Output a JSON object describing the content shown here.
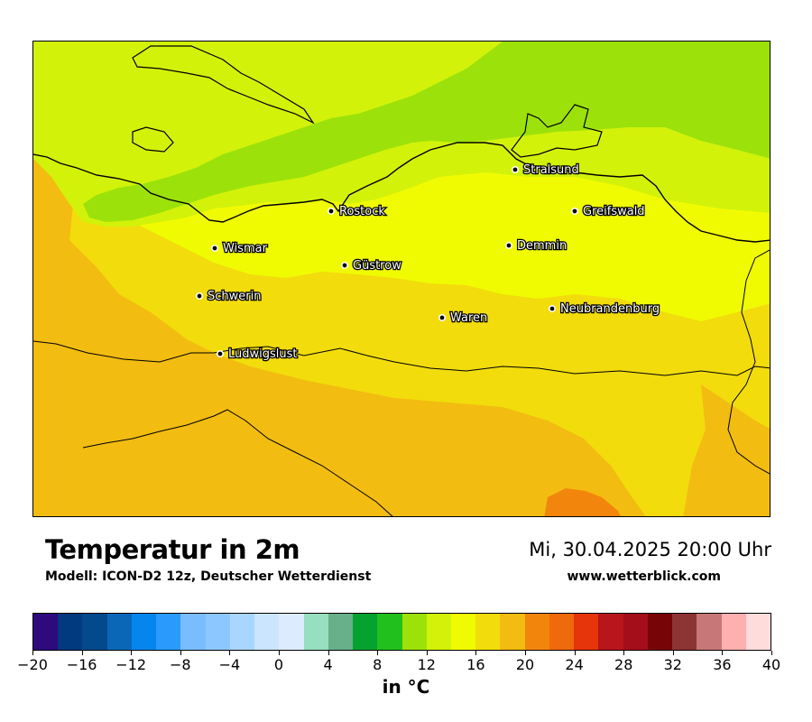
{
  "title": "Temperatur in 2m",
  "subtitle": "Modell: ICON-D2 12z, Deutscher Wetterdienst",
  "datetime": "Mi, 30.04.2025 20:00 Uhr",
  "website": "www.wetterblick.com",
  "colorbar": {
    "unit_label": "in °C",
    "min": -20,
    "max": 40,
    "step": 2,
    "tick_labels": [
      "−20",
      "−16",
      "−12",
      "−8",
      "−4",
      "0",
      "4",
      "8",
      "12",
      "16",
      "20",
      "24",
      "28",
      "32",
      "36",
      "40"
    ],
    "tick_values": [
      -20,
      -16,
      -12,
      -8,
      -4,
      0,
      4,
      8,
      12,
      16,
      20,
      24,
      28,
      32,
      36,
      40
    ],
    "colors": [
      "#2e0a7e",
      "#023a80",
      "#024a8c",
      "#0a67b8",
      "#0586ee",
      "#2a9bfd",
      "#79bdfe",
      "#8cc8ff",
      "#a8d6fe",
      "#cbe5fe",
      "#dcebfd",
      "#96dfc0",
      "#67b08a",
      "#04a22f",
      "#21c01c",
      "#9ce20a",
      "#d2f20a",
      "#f0fb02",
      "#f2dc0c",
      "#f2bc10",
      "#f2860c",
      "#ef6a0a",
      "#e6340b",
      "#b8161b",
      "#a40e1a",
      "#770406",
      "#8d3434",
      "#c77777",
      "#fdb0b0",
      "#fedcdc"
    ]
  },
  "map": {
    "cities": [
      {
        "name": "Stralsund"
      },
      {
        "name": "Rostock"
      },
      {
        "name": "Greifswald"
      },
      {
        "name": "Wismar"
      },
      {
        "name": "Demmin"
      },
      {
        "name": "Güstrow"
      },
      {
        "name": "Schwerin"
      },
      {
        "name": "Neubrandenburg"
      },
      {
        "name": "Waren"
      },
      {
        "name": "Ludwigslust"
      }
    ],
    "temperature_zones": [
      {
        "range": "10–12 °C",
        "color": "#9ce20a"
      },
      {
        "range": "12–14 °C",
        "color": "#d2f20a"
      },
      {
        "range": "14–16 °C",
        "color": "#f0fb02"
      },
      {
        "range": "16–18 °C",
        "color": "#f2dc0c"
      },
      {
        "range": "18–20 °C",
        "color": "#f2bc10"
      },
      {
        "range": "20–22 °C",
        "color": "#f2860c"
      }
    ]
  }
}
